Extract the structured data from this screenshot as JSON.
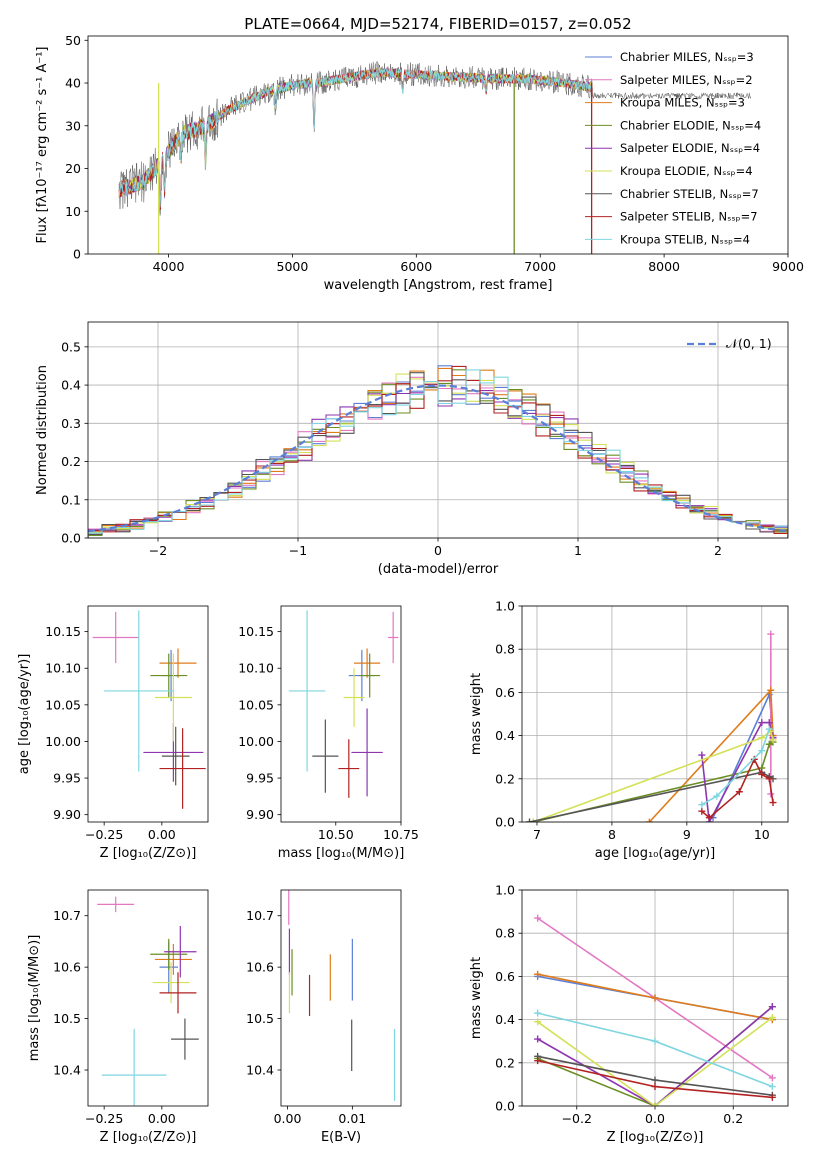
{
  "title": "PLATE=0664, MJD=52174, FIBERID=0157, z=0.052",
  "colors": [
    "#5b7fd6",
    "#e377c2",
    "#e07b1a",
    "#6b8e23",
    "#8e35b0",
    "#d4e157",
    "#555555",
    "#b22222",
    "#7fd6e0"
  ],
  "chart_data": [
    {
      "id": "spectrum",
      "type": "line",
      "xlabel": "wavelength [Angstrom, rest frame]",
      "ylabel": "Flux [fλ10⁻¹⁷ erg cm⁻² s⁻¹ A⁻¹]",
      "xlim": [
        3350,
        9000
      ],
      "ylim": [
        0,
        51
      ],
      "xticks": [
        4000,
        5000,
        6000,
        7000,
        8000,
        9000
      ],
      "yticks": [
        0,
        10,
        20,
        30,
        40,
        50
      ],
      "legend_position": "right",
      "legend": [
        "Chabrier MILES, Nₛₛₚ=3",
        "Salpeter MILES, Nₛₛₚ=2",
        "Kroupa MILES, Nₛₛₚ=3",
        "Chabrier ELODIE, Nₛₛₚ=4",
        "Salpeter ELODIE, Nₛₛₚ=4",
        "Kroupa ELODIE, Nₛₛₚ=4",
        "Chabrier STELIB, Nₛₛₚ=7",
        "Salpeter STELIB, Nₛₛₚ=7",
        "Kroupa STELIB, Nₛₛₚ=4"
      ],
      "continuum": [
        [
          3600,
          15
        ],
        [
          3800,
          17
        ],
        [
          3950,
          22
        ],
        [
          4100,
          28
        ],
        [
          4300,
          30
        ],
        [
          4500,
          34
        ],
        [
          4800,
          38
        ],
        [
          5000,
          39.5
        ],
        [
          5200,
          40
        ],
        [
          5400,
          41
        ],
        [
          5700,
          42.5
        ],
        [
          6000,
          42
        ],
        [
          6300,
          41.5
        ],
        [
          6600,
          41
        ],
        [
          6900,
          41
        ],
        [
          7200,
          40
        ],
        [
          7420,
          39
        ]
      ],
      "dips": [
        [
          3934,
          10
        ],
        [
          3969,
          8
        ],
        [
          4101,
          5
        ],
        [
          4300,
          8
        ],
        [
          4861,
          4
        ],
        [
          5175,
          10
        ],
        [
          5890,
          4
        ],
        [
          6563,
          3
        ]
      ]
    },
    {
      "id": "residuals",
      "type": "step",
      "xlabel": "(data-model)/error",
      "ylabel": "Normed distribution",
      "xlim": [
        -2.5,
        2.5
      ],
      "ylim": [
        0,
        0.565
      ],
      "xticks": [
        -2,
        -1,
        0,
        1,
        2
      ],
      "yticks": [
        0.0,
        0.1,
        0.2,
        0.3,
        0.4,
        0.5
      ],
      "reference_label": "𝒩(0, 1)",
      "legend_position": "top-right",
      "bin_width": 0.1
    },
    {
      "id": "age_vs_Z",
      "type": "errorbar",
      "xlabel": "Z [log₁₀(Z/Z⊙)]",
      "ylabel": "age  [log₁₀(age/yr)]",
      "xlim": [
        -0.32,
        0.2
      ],
      "ylim": [
        9.89,
        10.185
      ],
      "xticks": [
        -0.25,
        0.0
      ],
      "xticklabels": [
        "−0.25",
        "0.00"
      ],
      "yticks": [
        9.9,
        9.95,
        10.0,
        10.05,
        10.1,
        10.15
      ],
      "yticklabels": [
        "9.90",
        "9.95",
        "10.00",
        "10.05",
        "10.10",
        "10.15"
      ],
      "points": [
        {
          "x": 0.04,
          "y": 10.09,
          "xerr": 0.04,
          "yerr": 0.035
        },
        {
          "x": -0.2,
          "y": 10.142,
          "xerr": 0.1,
          "yerr": 0.035
        },
        {
          "x": 0.07,
          "y": 10.107,
          "xerr": 0.08,
          "yerr": 0.02
        },
        {
          "x": 0.03,
          "y": 10.09,
          "xerr": 0.08,
          "yerr": 0.03
        },
        {
          "x": 0.05,
          "y": 9.985,
          "xerr": 0.13,
          "yerr": 0.04
        },
        {
          "x": 0.05,
          "y": 10.06,
          "xerr": 0.08,
          "yerr": 0.06
        },
        {
          "x": 0.06,
          "y": 9.98,
          "xerr": 0.06,
          "yerr": 0.04
        },
        {
          "x": 0.09,
          "y": 9.963,
          "xerr": 0.1,
          "yerr": 0.055
        },
        {
          "x": -0.1,
          "y": 10.069,
          "xerr": 0.15,
          "yerr": 0.11
        }
      ]
    },
    {
      "id": "age_vs_mass",
      "type": "errorbar",
      "xlabel": "mass [log₁₀(M/M⊙)]",
      "xlim": [
        10.29,
        10.75
      ],
      "ylim": [
        9.89,
        10.185
      ],
      "xticks": [
        10.5,
        10.75
      ],
      "xticklabels": [
        "10.50",
        "10.75"
      ],
      "yticks": [
        9.9,
        9.95,
        10.0,
        10.05,
        10.1,
        10.15
      ],
      "yticklabels": [
        "9.90",
        "9.95",
        "10.00",
        "10.05",
        "10.10",
        "10.15"
      ],
      "points": [
        {
          "x": 10.6,
          "y": 10.09,
          "xerr": 0.05,
          "yerr": 0.035
        },
        {
          "x": 10.72,
          "y": 10.142,
          "xerr": 0.02,
          "yerr": 0.035
        },
        {
          "x": 10.62,
          "y": 10.107,
          "xerr": 0.05,
          "yerr": 0.02
        },
        {
          "x": 10.63,
          "y": 10.09,
          "xerr": 0.04,
          "yerr": 0.03
        },
        {
          "x": 10.62,
          "y": 9.985,
          "xerr": 0.06,
          "yerr": 0.06
        },
        {
          "x": 10.57,
          "y": 10.06,
          "xerr": 0.04,
          "yerr": 0.04
        },
        {
          "x": 10.46,
          "y": 9.98,
          "xerr": 0.05,
          "yerr": 0.05
        },
        {
          "x": 10.55,
          "y": 9.963,
          "xerr": 0.04,
          "yerr": 0.04
        },
        {
          "x": 10.39,
          "y": 10.069,
          "xerr": 0.07,
          "yerr": 0.11
        }
      ]
    },
    {
      "id": "weight_vs_age",
      "type": "line",
      "xlabel": "age  [log₁₀(age/yr)]",
      "ylabel": "mass weight",
      "xlim": [
        6.8,
        10.35
      ],
      "ylim": [
        0,
        1.0
      ],
      "xticks": [
        7,
        8,
        9,
        10
      ],
      "yticks": [
        0.0,
        0.2,
        0.4,
        0.6,
        0.8,
        1.0
      ],
      "series": [
        {
          "points": [
            [
              9.35,
              0.02
            ],
            [
              10.1,
              0.59
            ],
            [
              10.15,
              0.4
            ]
          ]
        },
        {
          "points": [
            [
              10.12,
              0.87
            ],
            [
              10.12,
              0.13
            ]
          ]
        },
        {
          "points": [
            [
              8.5,
              0.0
            ],
            [
              10.12,
              0.61
            ],
            [
              10.15,
              0.4
            ]
          ]
        },
        {
          "points": [
            [
              6.95,
              0.0
            ],
            [
              10.0,
              0.25
            ],
            [
              10.1,
              0.36
            ],
            [
              10.15,
              0.37
            ]
          ]
        },
        {
          "points": [
            [
              9.2,
              0.31
            ],
            [
              9.3,
              0.0
            ],
            [
              10.0,
              0.46
            ],
            [
              10.1,
              0.46
            ],
            [
              10.15,
              0.39
            ]
          ]
        },
        {
          "points": [
            [
              6.95,
              0.0
            ],
            [
              10.0,
              0.39
            ],
            [
              10.12,
              0.42
            ],
            [
              10.15,
              0.38
            ]
          ]
        },
        {
          "points": [
            [
              6.9,
              0.0
            ],
            [
              10.0,
              0.23
            ],
            [
              10.1,
              0.21
            ],
            [
              10.15,
              0.2
            ]
          ]
        },
        {
          "points": [
            [
              9.2,
              0.05
            ],
            [
              9.3,
              0.02
            ],
            [
              9.7,
              0.14
            ],
            [
              9.9,
              0.29
            ],
            [
              10.0,
              0.22
            ],
            [
              10.1,
              0.2
            ],
            [
              10.15,
              0.09
            ]
          ]
        },
        {
          "points": [
            [
              9.2,
              0.08
            ],
            [
              9.4,
              0.12
            ],
            [
              10.0,
              0.33
            ],
            [
              10.1,
              0.43
            ]
          ]
        }
      ]
    },
    {
      "id": "mass_vs_Z",
      "type": "errorbar",
      "xlabel": "Z [log₁₀(Z/Z⊙)]",
      "ylabel": "mass [log₁₀(M/M⊙)]",
      "xlim": [
        -0.32,
        0.2
      ],
      "ylim": [
        10.33,
        10.75
      ],
      "xticks": [
        -0.25,
        0.0
      ],
      "xticklabels": [
        "−0.25",
        "0.00"
      ],
      "yticks": [
        10.4,
        10.5,
        10.6,
        10.7
      ],
      "yticklabels": [
        "10.4",
        "10.5",
        "10.6",
        "10.7"
      ],
      "points": [
        {
          "x": 0.03,
          "y": 10.6,
          "xerr": 0.04,
          "yerr": 0.05
        },
        {
          "x": -0.2,
          "y": 10.722,
          "xerr": 0.08,
          "yerr": 0.015
        },
        {
          "x": 0.05,
          "y": 10.615,
          "xerr": 0.08,
          "yerr": 0.03
        },
        {
          "x": 0.03,
          "y": 10.625,
          "xerr": 0.08,
          "yerr": 0.03
        },
        {
          "x": 0.08,
          "y": 10.63,
          "xerr": 0.07,
          "yerr": 0.05
        },
        {
          "x": 0.04,
          "y": 10.57,
          "xerr": 0.08,
          "yerr": 0.04
        },
        {
          "x": 0.1,
          "y": 10.46,
          "xerr": 0.06,
          "yerr": 0.04
        },
        {
          "x": 0.07,
          "y": 10.55,
          "xerr": 0.08,
          "yerr": 0.04
        },
        {
          "x": -0.12,
          "y": 10.39,
          "xerr": 0.14,
          "yerr": 0.09
        }
      ]
    },
    {
      "id": "mass_vs_ebv",
      "type": "errorbar",
      "xlabel": "E(B-V)",
      "xlim": [
        -0.001,
        0.0175
      ],
      "ylim": [
        10.33,
        10.75
      ],
      "xticks": [
        0.0,
        0.01
      ],
      "xticklabels": [
        "0.00",
        "0.01"
      ],
      "yticks": [
        10.4,
        10.5,
        10.6,
        10.7
      ],
      "yticklabels": [
        "10.4",
        "10.5",
        "10.6",
        "10.7"
      ],
      "points": [
        {
          "x": 0.01,
          "y": 10.595,
          "yerr": 0.06
        },
        {
          "x": 0.0002,
          "y": 10.722,
          "yerr": 0.04
        },
        {
          "x": 0.0066,
          "y": 10.58,
          "yerr": 0.045
        },
        {
          "x": 0.0007,
          "y": 10.59,
          "yerr": 0.045
        },
        {
          "x": 0.0003,
          "y": 10.63,
          "yerr": 0.045
        },
        {
          "x": 0.0003,
          "y": 10.55,
          "yerr": 0.04
        },
        {
          "x": 0.0099,
          "y": 10.448,
          "yerr": 0.05
        },
        {
          "x": 0.0034,
          "y": 10.545,
          "yerr": 0.04
        },
        {
          "x": 0.0165,
          "y": 10.41,
          "yerr": 0.07
        }
      ]
    },
    {
      "id": "weight_vs_Z",
      "type": "line",
      "xlabel": "Z [log₁₀(Z/Z⊙)]",
      "ylabel": "mass weight",
      "xlim": [
        -0.34,
        0.34
      ],
      "ylim": [
        0,
        1.0
      ],
      "xticks": [
        -0.2,
        0.0,
        0.2
      ],
      "xticklabels": [
        "−0.2",
        "0.0",
        "0.2"
      ],
      "yticks": [
        0.0,
        0.2,
        0.4,
        0.6,
        0.8,
        1.0
      ],
      "series": [
        {
          "points": [
            [
              -0.3,
              0.6
            ],
            [
              0.0,
              0.5
            ],
            [
              0.3,
              0.4
            ]
          ]
        },
        {
          "points": [
            [
              -0.3,
              0.87
            ],
            [
              0.3,
              0.13
            ]
          ]
        },
        {
          "points": [
            [
              -0.3,
              0.61
            ],
            [
              0.0,
              0.5
            ],
            [
              0.3,
              0.4
            ]
          ]
        },
        {
          "points": [
            [
              -0.3,
              0.22
            ],
            [
              0.0,
              0.0
            ],
            [
              0.3,
              0.46
            ]
          ]
        },
        {
          "points": [
            [
              -0.3,
              0.31
            ],
            [
              0.0,
              0.0
            ],
            [
              0.3,
              0.46
            ]
          ]
        },
        {
          "points": [
            [
              -0.3,
              0.39
            ],
            [
              0.0,
              0.0
            ],
            [
              0.3,
              0.41
            ]
          ]
        },
        {
          "points": [
            [
              -0.3,
              0.23
            ],
            [
              0.0,
              0.12
            ],
            [
              0.3,
              0.05
            ]
          ]
        },
        {
          "points": [
            [
              -0.3,
              0.21
            ],
            [
              0.0,
              0.09
            ],
            [
              0.3,
              0.04
            ]
          ]
        },
        {
          "points": [
            [
              -0.3,
              0.43
            ],
            [
              0.0,
              0.3
            ],
            [
              0.3,
              0.09
            ]
          ]
        }
      ]
    }
  ]
}
